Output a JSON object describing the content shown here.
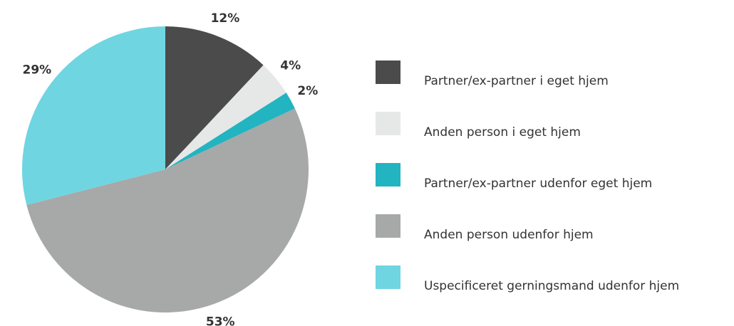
{
  "chart_data": {
    "type": "pie",
    "categories": [
      "Partner/ex-partner i eget hjem",
      "Anden person i eget hjem",
      "Partner/ex-partner udenfor eget hjem",
      "Anden person udenfor hjem",
      "Uspecificeret gerningsmand udenfor hjem"
    ],
    "values": [
      12,
      4,
      2,
      53,
      29
    ],
    "value_labels": [
      "12%",
      "4%",
      "2%",
      "53%",
      "29%"
    ],
    "colors": [
      "#4b4b4b",
      "#e6e7e7",
      "#22b4c0",
      "#a7a8a8",
      "#6fd5e1"
    ]
  }
}
